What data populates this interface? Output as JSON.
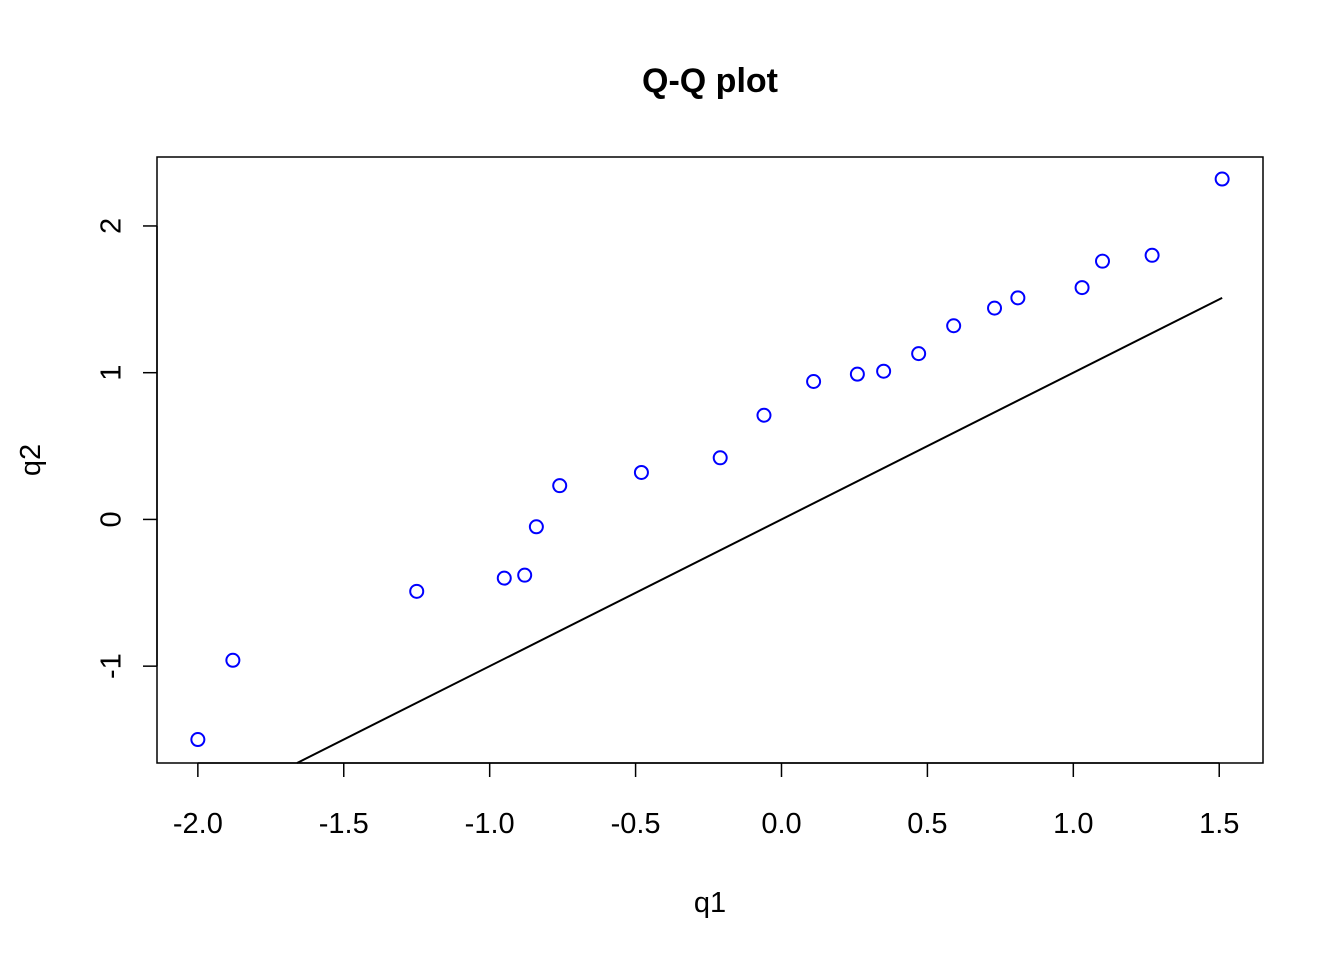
{
  "chart_data": {
    "type": "scatter",
    "title": "Q-Q plot",
    "xlabel": "q1",
    "ylabel": "q2",
    "xlim": [
      -2.14,
      1.65
    ],
    "ylim": [
      -1.66,
      2.47
    ],
    "x_ticks": [
      -2.0,
      -1.5,
      -1.0,
      -0.5,
      0.0,
      0.5,
      1.0,
      1.5
    ],
    "x_tick_labels": [
      "-2.0",
      "-1.5",
      "-1.0",
      "-0.5",
      "0.0",
      "0.5",
      "1.0",
      "1.5"
    ],
    "y_ticks": [
      -1,
      0,
      1,
      2
    ],
    "y_tick_labels": [
      "-1",
      "0",
      "1",
      "2"
    ],
    "grid": false,
    "point_color": "#0000ff",
    "line_color": "#000000",
    "points": {
      "x": [
        -2.0,
        -1.88,
        -1.25,
        -0.95,
        -0.88,
        -0.84,
        -0.76,
        -0.48,
        -0.21,
        -0.06,
        0.11,
        0.26,
        0.35,
        0.47,
        0.59,
        0.73,
        0.81,
        1.03,
        1.1,
        1.27,
        1.51
      ],
      "y": [
        -1.5,
        -0.96,
        -0.49,
        -0.4,
        -0.38,
        -0.05,
        0.23,
        0.32,
        0.42,
        0.71,
        0.94,
        0.99,
        1.01,
        1.13,
        1.32,
        1.44,
        1.51,
        1.58,
        1.76,
        1.8,
        2.32
      ]
    },
    "reference_line": {
      "x": [
        -1.66,
        1.51
      ],
      "y": [
        -1.66,
        1.51
      ]
    }
  }
}
